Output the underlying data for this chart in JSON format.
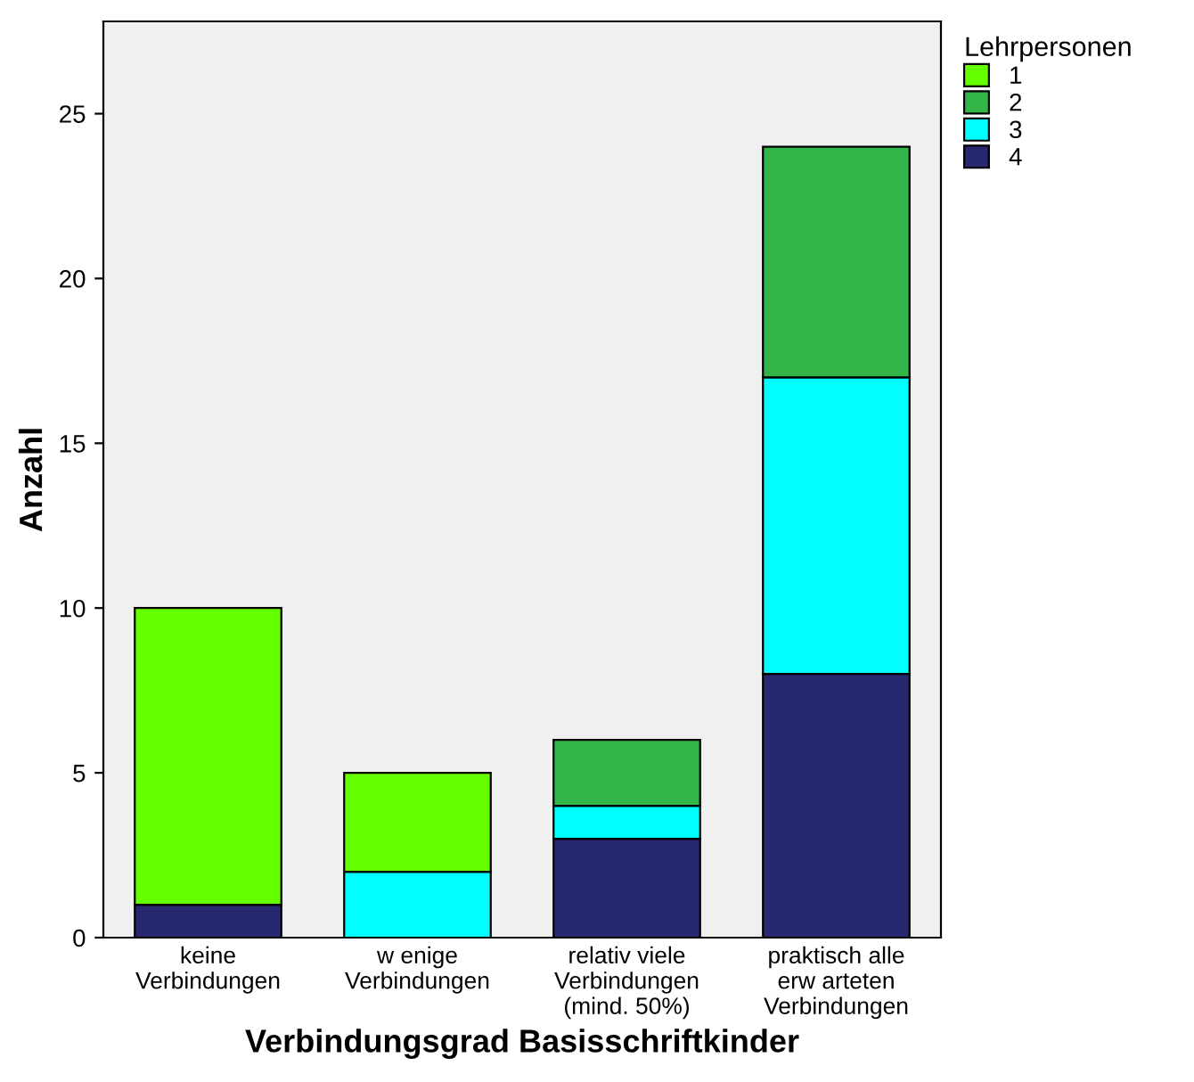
{
  "chart_data": {
    "type": "bar",
    "stacked": true,
    "xlabel": "Verbindungsgrad Basisschriftkinder",
    "ylabel": "Anzahl",
    "legend_title": "Lehrpersonen",
    "legend": "top right",
    "categories": [
      "keine\nVerbindungen",
      "w enige\nVerbindungen",
      "relativ viele\nVerbindungen\n(mind. 50%)",
      "praktisch alle\nerw arteten\nVerbindungen"
    ],
    "series": [
      {
        "name": "4",
        "color": "#282870",
        "values": [
          1,
          null,
          3,
          8
        ]
      },
      {
        "name": "3",
        "color": "#00ffff",
        "values": [
          null,
          2,
          1,
          9
        ]
      },
      {
        "name": "2",
        "color": "#33b54a",
        "values": [
          null,
          null,
          2,
          7
        ]
      },
      {
        "name": "1",
        "color": "#66ff00",
        "values": [
          9,
          3,
          null,
          null
        ]
      }
    ],
    "ylim": [
      0,
      27.8
    ],
    "yticks": [
      0,
      5,
      10,
      15,
      20,
      25
    ],
    "grid": false
  }
}
